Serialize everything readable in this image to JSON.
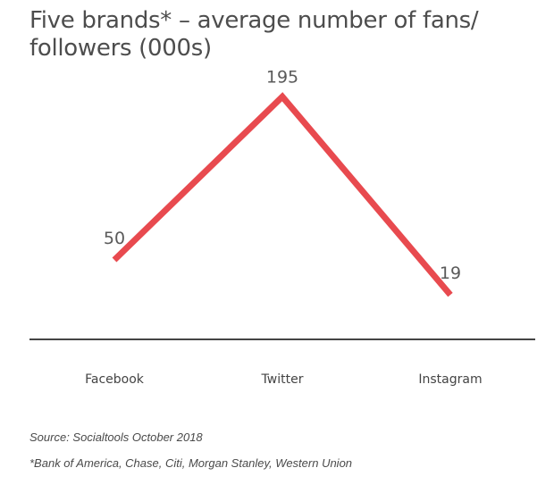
{
  "chart_data": {
    "type": "line",
    "title": "Five brands* – average number of fans/ followers (000s)",
    "categories": [
      "Facebook",
      "Twitter",
      "Instagram"
    ],
    "series": [
      {
        "values": [
          50,
          195,
          19
        ],
        "color": "#e84a4f"
      }
    ],
    "data_labels": [
      "50",
      "195",
      "19"
    ],
    "ylim": [
      0,
      210
    ],
    "grid": false,
    "legend": "none",
    "xlabel": "",
    "ylabel": "",
    "axis_color": "#444444"
  },
  "notes": {
    "source": "Source: Socialtools October 2018",
    "footnote": "*Bank of America, Chase, Citi, Morgan Stanley, Western Union"
  }
}
